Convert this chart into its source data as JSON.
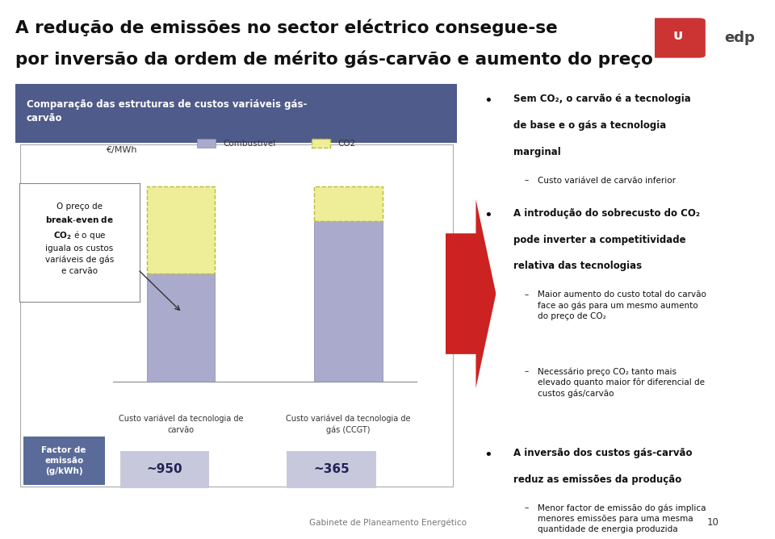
{
  "title_line1": "A redução de emissões no sector eléctrico consegue-se",
  "title_line2": "por inversão da ordem de mérito gás-carvão e aumento do preço",
  "bg_color": "#ffffff",
  "header_color": "#4f5b8a",
  "chart_title": "Comparação das estruturas de custos variáveis gás-\ncarvão",
  "ylabel": "€/MWh",
  "legend_combustivel": "Combustivel",
  "legend_co2": "CO2",
  "bar1_combustivel": 3.5,
  "bar1_co2": 2.8,
  "bar2_combustivel": 5.2,
  "bar2_co2": 1.1,
  "combustivel_color": "#aaaacc",
  "co2_color": "#eeee99",
  "co2_border_color": "#bbbb33",
  "bar1_label": "Custo variável da tecnologia de\ncarvão",
  "bar2_label": "Custo variável da tecnologia de\ngás (CCGT)",
  "emission1": "~950",
  "emission2": "~365",
  "emission_bg": "#c8c8dd",
  "factor_label": "Factor de\nemissão\n(g/kWh)",
  "factor_bg": "#5a6b9a",
  "footer": "Gabinete de Planeamento Energético",
  "page_number": "10",
  "top_line_color": "#cc3333",
  "red_arrow_color": "#cc2222"
}
